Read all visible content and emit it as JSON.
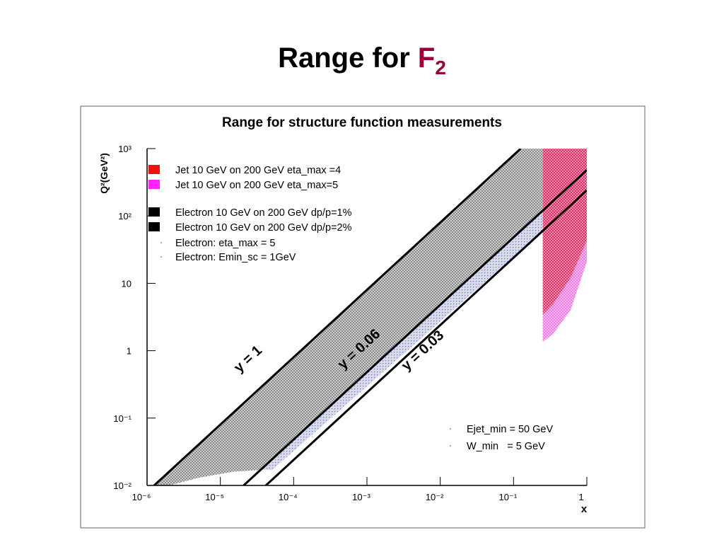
{
  "slide_title": {
    "text": "Range for ",
    "highlight": "F",
    "subscript": "2",
    "highlight_color": "#99003d"
  },
  "chart_data": {
    "type": "area",
    "title": "Range for structure function measurements",
    "x_label": "x",
    "y_label": "Q²(GeV²)",
    "log_x": true,
    "log_y": true,
    "xlim": [
      1e-06,
      1
    ],
    "ylim": [
      0.01,
      1000
    ],
    "xticks": [
      {
        "value": 1e-06,
        "label": "10⁻⁶"
      },
      {
        "value": 1e-05,
        "label": "10⁻⁵"
      },
      {
        "value": 0.0001,
        "label": "10⁻⁴"
      },
      {
        "value": 0.001,
        "label": "10⁻³"
      },
      {
        "value": 0.01,
        "label": "10⁻²"
      },
      {
        "value": 0.1,
        "label": "10⁻¹"
      },
      1
    ],
    "yticks": [
      {
        "value": 0.01,
        "label": "10⁻²"
      },
      {
        "value": 0.1,
        "label": "10⁻¹"
      },
      1,
      10,
      {
        "value": 100,
        "label": "10²"
      },
      {
        "value": 1000,
        "label": "10³"
      }
    ],
    "series": [
      {
        "name": "Jet 10 GeV on 200 GeV eta_max =4",
        "color": "#e0104e",
        "legend_color": "#ee1111",
        "x": [
          0.25,
          1,
          1,
          0.6,
          0.35,
          0.25
        ],
        "values": [
          1000,
          1000,
          43,
          12,
          5,
          3.4
        ]
      },
      {
        "name": "Jet 10 GeV on 200 GeV eta_max=5",
        "color": "#ee66dd",
        "legend_color": "#ff22ff",
        "x": [
          0.25,
          0.35,
          0.6,
          1,
          1,
          0.6,
          0.35,
          0.25
        ],
        "values": [
          3.4,
          5,
          12,
          43,
          21,
          4,
          1.8,
          1.35
        ]
      },
      {
        "name": "Electron 10 GeV on 200 GeV dp/p=1%",
        "color": "#777777",
        "legend_color": "#000000",
        "x": [
          1.25e-06,
          0.125,
          0.25,
          0.25,
          3.5e-05,
          1.5e-05,
          5e-06,
          2e-06
        ],
        "values": [
          0.01,
          1000,
          1000,
          120,
          0.017,
          0.016,
          0.013,
          0.01
        ]
      },
      {
        "name": "Electron 10 GeV on 200 GeV dp/p=2%",
        "color": "#6666dd",
        "legend_color": "#000000",
        "x": [
          2.3e-05,
          3.5e-05,
          0.25,
          0.25,
          5.1e-05
        ],
        "values": [
          0.017,
          0.017,
          120,
          60,
          0.017
        ]
      }
    ],
    "notes": [
      "Electron: eta_max = 5",
      "Electron: Emin_sc = 1GeV"
    ],
    "notes2": [
      "Ejet_min = 50 GeV",
      "W_min   = 5 GeV"
    ],
    "lines": [
      {
        "label": "y = 1",
        "x": [
          1.25e-06,
          0.125
        ],
        "values": [
          0.01,
          1000
        ]
      },
      {
        "label": "y = 0.06",
        "x": [
          2.08e-05,
          1
        ],
        "values": [
          0.01,
          480
        ]
      },
      {
        "label": "y = 0.03",
        "x": [
          4.17e-05,
          1
        ],
        "values": [
          0.01,
          240
        ]
      }
    ]
  }
}
